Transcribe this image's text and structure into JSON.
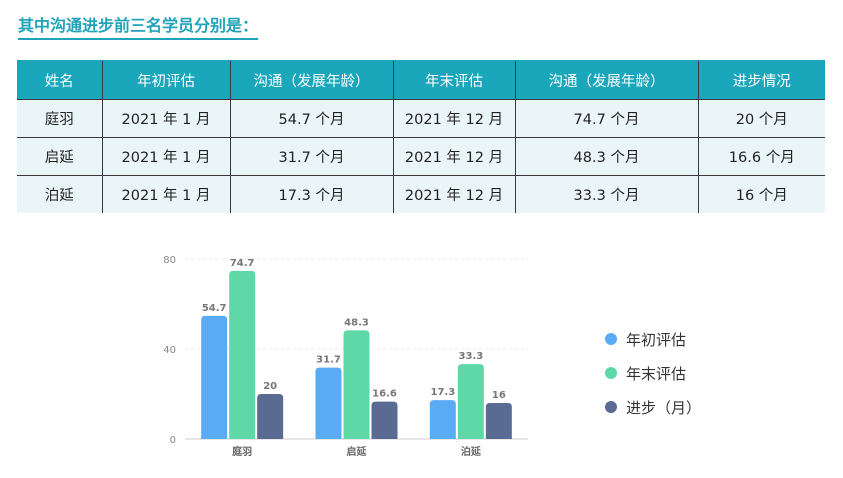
{
  "heading": "其中沟通进步前三名学员分别是：",
  "table": {
    "headers": [
      "姓名",
      "年初评估",
      "沟通（发展年龄）",
      "年末评估",
      "沟通（发展年龄）",
      "进步情况"
    ],
    "rows": [
      [
        "庭羽",
        "2021 年 1 月",
        "54.7 个月",
        "2021 年 12 月",
        "74.7 个月",
        "20 个月"
      ],
      [
        "启延",
        "2021 年 1 月",
        "31.7 个月",
        "2021 年 12 月",
        "48.3 个月",
        "16.6 个月"
      ],
      [
        "泊延",
        "2021 年 1 月",
        "17.3 个月",
        "2021 年 12 月",
        "33.3 个月",
        "16 个月"
      ]
    ]
  },
  "chart_data": {
    "type": "bar",
    "categories": [
      "庭羽",
      "启延",
      "泊延"
    ],
    "series": [
      {
        "name": "年初评估",
        "values": [
          54.7,
          31.7,
          17.3
        ],
        "labels": [
          "54.7",
          "31.7",
          "17.3"
        ],
        "color": "#5aabf5"
      },
      {
        "name": "年末评估",
        "values": [
          74.7,
          48.3,
          33.3
        ],
        "labels": [
          "74.7",
          "48.3",
          "33.3"
        ],
        "color": "#5ed8a6"
      },
      {
        "name": "进步（月）",
        "values": [
          20,
          16.6,
          16
        ],
        "labels": [
          "20",
          "16.6",
          "16"
        ],
        "color": "#5a6b93"
      }
    ],
    "yticks": [
      0,
      40,
      80
    ],
    "ylim": [
      0,
      80
    ],
    "grid": true,
    "legend_position": "right"
  }
}
